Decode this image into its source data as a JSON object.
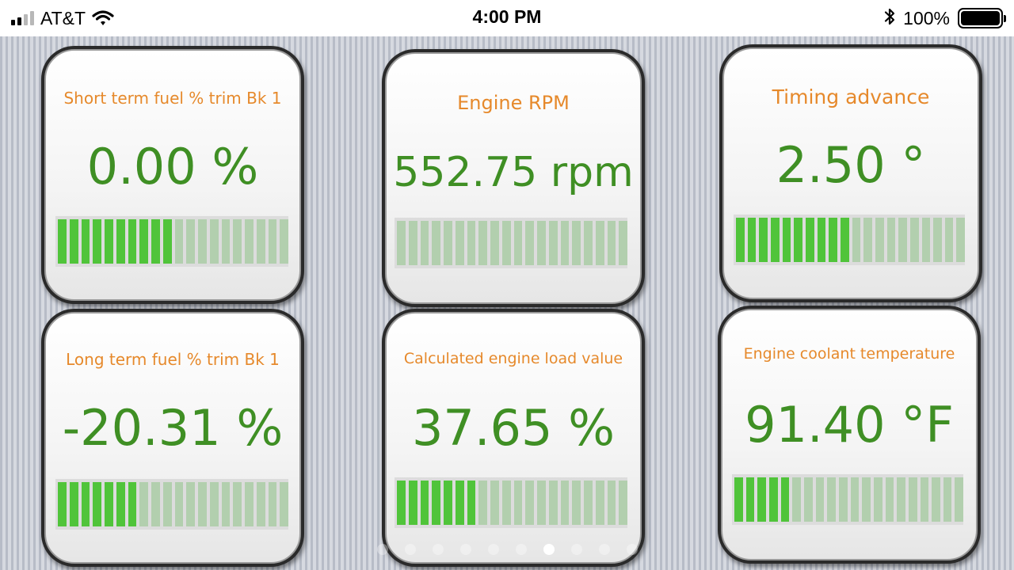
{
  "status_bar": {
    "carrier": "AT&T",
    "time": "4:00 PM",
    "battery_percent": "100%",
    "signal_bars": 4,
    "signal_active": 2
  },
  "gauges": [
    {
      "label": "Short term fuel % trim Bk 1",
      "value": "0.00 %",
      "level": 0.5
    },
    {
      "label": "Engine RPM",
      "value": "552.75 rpm",
      "level": 0
    },
    {
      "label": "Timing advance",
      "value": "2.50 °",
      "level": 0.5
    },
    {
      "label": "Long term fuel % trim Bk 1",
      "value": "-20.31 %",
      "level": 0.35
    },
    {
      "label": "Calculated engine load value",
      "value": "37.65 %",
      "level": 0.35
    },
    {
      "label": "Engine coolant temperature",
      "value": "91.40 °F",
      "level": 0.25
    }
  ],
  "bar_segments": 20,
  "page_indicator": {
    "count": 10,
    "active": 6
  },
  "colors": {
    "label": "#e6892b",
    "value": "#3f8f24",
    "segment_on": "#50c43a",
    "segment_off": "#b2cfae"
  },
  "icons": {
    "signal": "cellular-signal-icon",
    "wifi": "wifi-icon",
    "bluetooth": "bluetooth-icon",
    "battery": "battery-icon"
  }
}
